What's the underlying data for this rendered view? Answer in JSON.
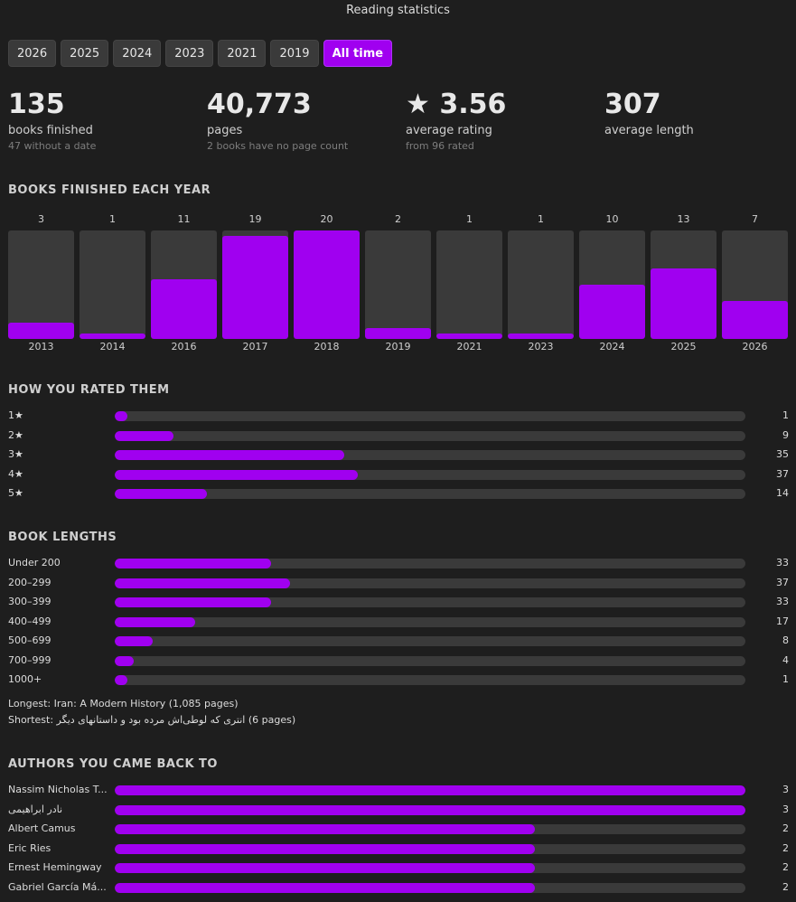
{
  "page_title": "Reading statistics",
  "tabs": [
    {
      "label": "2026",
      "active": false
    },
    {
      "label": "2025",
      "active": false
    },
    {
      "label": "2024",
      "active": false
    },
    {
      "label": "2023",
      "active": false
    },
    {
      "label": "2021",
      "active": false
    },
    {
      "label": "2019",
      "active": false
    },
    {
      "label": "All time",
      "active": true
    }
  ],
  "summary": {
    "books": {
      "value": "135",
      "label": "books finished",
      "sub": "47 without a date"
    },
    "pages": {
      "value": "40,773",
      "label": "pages",
      "sub": "2 books have no page count"
    },
    "rating": {
      "value": "★ 3.56",
      "label": "average rating",
      "sub": "from 96 rated"
    },
    "length": {
      "value": "307",
      "label": "average length",
      "sub": ""
    }
  },
  "sections": {
    "per_year": "BOOKS FINISHED EACH YEAR",
    "ratings": "HOW YOU RATED THEM",
    "lengths": "BOOK LENGTHS",
    "authors": "AUTHORS YOU CAME BACK TO"
  },
  "books_per_year": [
    {
      "year": "2013",
      "count": 3
    },
    {
      "year": "2014",
      "count": 1
    },
    {
      "year": "2016",
      "count": 11
    },
    {
      "year": "2017",
      "count": 19
    },
    {
      "year": "2018",
      "count": 20
    },
    {
      "year": "2019",
      "count": 2
    },
    {
      "year": "2021",
      "count": 1
    },
    {
      "year": "2023",
      "count": 1
    },
    {
      "year": "2024",
      "count": 10
    },
    {
      "year": "2025",
      "count": 13
    },
    {
      "year": "2026",
      "count": 7
    }
  ],
  "ratings": [
    {
      "label": "1★",
      "count": 1
    },
    {
      "label": "2★",
      "count": 9
    },
    {
      "label": "3★",
      "count": 35
    },
    {
      "label": "4★",
      "count": 37
    },
    {
      "label": "5★",
      "count": 14
    }
  ],
  "lengths": [
    {
      "label": "Under 200",
      "count": 33
    },
    {
      "label": "200–299",
      "count": 37
    },
    {
      "label": "300–399",
      "count": 33
    },
    {
      "label": "400–499",
      "count": 17
    },
    {
      "label": "500–699",
      "count": 8
    },
    {
      "label": "700–999",
      "count": 4
    },
    {
      "label": "1000+",
      "count": 1
    }
  ],
  "longest": "Longest: Iran: A Modern History (1,085 pages)",
  "shortest": "Shortest: انتری که لوطی‌اش مرده بود و داستانهای دیگر (6 pages)",
  "authors": [
    {
      "label": "Nassim Nicholas T...",
      "count": 3
    },
    {
      "label": "نادر ابراهیمی",
      "count": 3
    },
    {
      "label": "Albert Camus",
      "count": 2
    },
    {
      "label": "Eric Ries",
      "count": 2
    },
    {
      "label": "Ernest Hemingway",
      "count": 2
    },
    {
      "label": "Gabriel García Má...",
      "count": 2
    }
  ],
  "colors": {
    "accent": "#a000f0",
    "track": "#3a3a3a",
    "background": "#1e1e1e"
  }
}
